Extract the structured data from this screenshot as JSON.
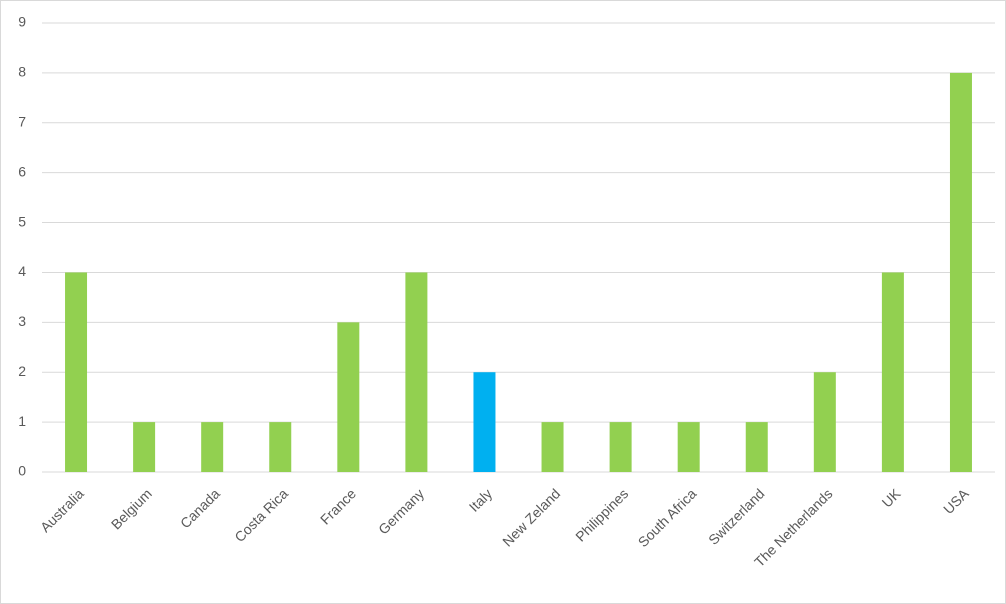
{
  "chart_data": {
    "type": "bar",
    "categories": [
      "Australia",
      "Belgium",
      "Canada",
      "Costa Rica",
      "France",
      "Germany",
      "Italy",
      "New Zeland",
      "Philippines",
      "South Africa",
      "Switzerland",
      "The Netherlands",
      "UK",
      "USA"
    ],
    "values": [
      4,
      1,
      1,
      1,
      3,
      4,
      2,
      1,
      1,
      1,
      1,
      2,
      4,
      8
    ],
    "colors": [
      "#92d050",
      "#92d050",
      "#92d050",
      "#92d050",
      "#92d050",
      "#92d050",
      "#00b0f0",
      "#92d050",
      "#92d050",
      "#92d050",
      "#92d050",
      "#92d050",
      "#92d050",
      "#92d050"
    ],
    "ylim": [
      0,
      9
    ],
    "yticks": [
      0,
      1,
      2,
      3,
      4,
      5,
      6,
      7,
      8,
      9
    ],
    "grid": true
  }
}
